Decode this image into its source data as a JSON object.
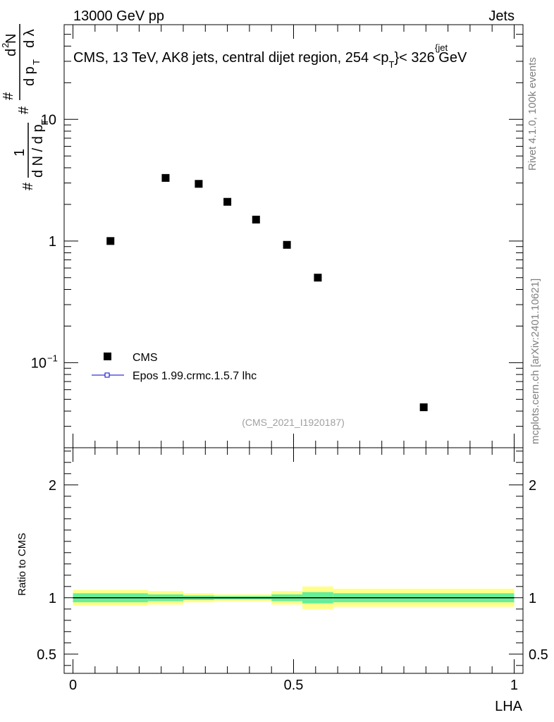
{
  "header": {
    "left": "13000 GeV pp",
    "right": "Jets"
  },
  "side_labels": {
    "rivet": "Rivet 4.1.0,  100k events",
    "mcplots": "mcplots.cern.ch [arXiv:2401.10621]"
  },
  "watermark": "(CMS_2021_I1920187)",
  "colors": {
    "data": "#000000",
    "mc": "#0000cc",
    "band_outer": "#ffff88",
    "band_inner": "#66ee99"
  },
  "chart_data": [
    {
      "type": "scatter",
      "title_parts": {
        "prefix": "CMS, 13 TeV, AK8 jets, central dijet region, 254 <p",
        "sub": "T",
        "sup": "{jet",
        "suffix": "}< 326 GeV"
      },
      "ylabel_parts": {
        "p1": "#",
        "p2": "1",
        "p3": "d N / d p",
        "p4": "T",
        "p5": "#",
        "p6": "d",
        "p7": "2",
        "p8": "N",
        "p9": "#",
        "p10": "d p",
        "p11": "T",
        "p12": "d λ"
      },
      "yscale": "log",
      "ylim": [
        0.02,
        60
      ],
      "xlim": [
        -0.02,
        1.02
      ],
      "yticks": [
        {
          "value": 10,
          "label": "10"
        },
        {
          "value": 1,
          "label": "1"
        },
        {
          "value": 0.1,
          "label": "10",
          "sup": "−1"
        }
      ],
      "legend": [
        {
          "label": "CMS",
          "marker": "square"
        },
        {
          "label": "Epos 1.99.crmc.1.5.7 lhc",
          "marker": "line-open-square"
        }
      ],
      "series": [
        {
          "name": "CMS",
          "x": [
            0.085,
            0.21,
            0.285,
            0.35,
            0.415,
            0.485,
            0.555,
            0.795
          ],
          "y": [
            1.0,
            3.3,
            2.95,
            2.1,
            1.5,
            0.93,
            0.5,
            0.043
          ]
        }
      ]
    },
    {
      "type": "line",
      "ylabel": "Ratio to CMS",
      "xlabel": "LHA",
      "ylim": [
        0.33,
        2.33
      ],
      "xlim": [
        -0.02,
        1.02
      ],
      "xticks": [
        {
          "value": 0,
          "label": "0"
        },
        {
          "value": 0.5,
          "label": "0.5"
        },
        {
          "value": 1,
          "label": "1"
        }
      ],
      "yticks": [
        {
          "value": 2,
          "label": "2"
        },
        {
          "value": 1,
          "label": "1"
        },
        {
          "value": 0.5,
          "label": "0.5"
        }
      ],
      "reference": 1.0,
      "uncertainty_bands": [
        {
          "x0": 0.0,
          "x1": 0.17,
          "outer": 0.07,
          "inner": 0.04
        },
        {
          "x0": 0.17,
          "x1": 0.25,
          "outer": 0.06,
          "inner": 0.03
        },
        {
          "x0": 0.25,
          "x1": 0.32,
          "outer": 0.04,
          "inner": 0.02
        },
        {
          "x0": 0.32,
          "x1": 0.45,
          "outer": 0.03,
          "inner": 0.015
        },
        {
          "x0": 0.45,
          "x1": 0.52,
          "outer": 0.06,
          "inner": 0.03
        },
        {
          "x0": 0.52,
          "x1": 0.59,
          "outer": 0.1,
          "inner": 0.05
        },
        {
          "x0": 0.59,
          "x1": 1.0,
          "outer": 0.08,
          "inner": 0.04
        }
      ]
    }
  ]
}
